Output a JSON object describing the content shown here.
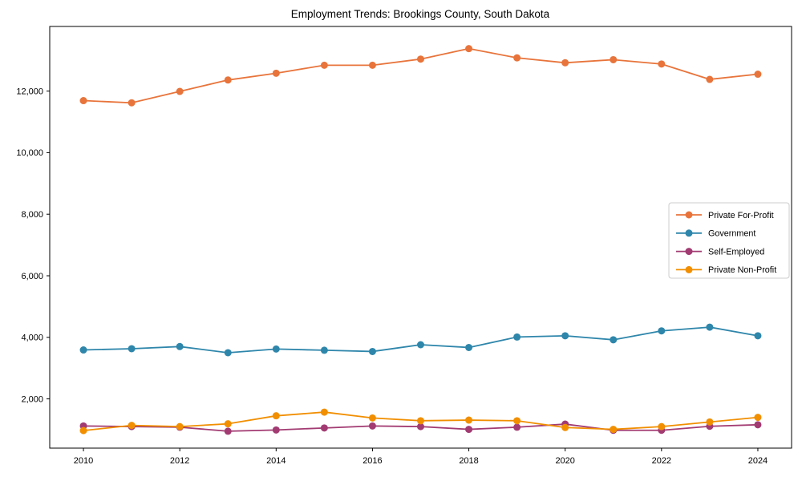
{
  "title": "Employment Trends: Brookings County, South Dakota",
  "colors": {
    "private_for_profit": "#E8743B",
    "government": "#2E86AB",
    "self_employed": "#A23B72",
    "private_non_profit": "#F18F01",
    "spine": "#000000",
    "legend_border": "#cccccc",
    "background": "#ffffff"
  },
  "chart_data": {
    "type": "line",
    "title": "Employment Trends: Brookings County, South Dakota",
    "xlabel": "",
    "ylabel": "",
    "x": [
      2010,
      2011,
      2012,
      2013,
      2014,
      2015,
      2016,
      2017,
      2018,
      2019,
      2020,
      2021,
      2022,
      2023,
      2024
    ],
    "series": [
      {
        "name": "Private For-Profit",
        "color": "#E8743B",
        "values": [
          11690,
          11620,
          11990,
          12360,
          12580,
          12840,
          12840,
          13040,
          13380,
          13080,
          12920,
          13020,
          12880,
          12380,
          12550
        ]
      },
      {
        "name": "Government",
        "color": "#2E86AB",
        "values": [
          3590,
          3630,
          3700,
          3500,
          3620,
          3580,
          3540,
          3760,
          3670,
          4010,
          4050,
          3920,
          4210,
          4330,
          4050
        ]
      },
      {
        "name": "Self-Employed",
        "color": "#A23B72",
        "values": [
          1120,
          1100,
          1080,
          950,
          990,
          1055,
          1120,
          1100,
          1010,
          1080,
          1180,
          980,
          980,
          1110,
          1160
        ]
      },
      {
        "name": "Private Non-Profit",
        "color": "#F18F01",
        "values": [
          970,
          1140,
          1100,
          1190,
          1450,
          1570,
          1380,
          1290,
          1310,
          1290,
          1070,
          1010,
          1100,
          1250,
          1400
        ]
      }
    ],
    "xticks": [
      2010,
      2012,
      2014,
      2016,
      2018,
      2020,
      2022,
      2024
    ],
    "yticks": [
      2000,
      4000,
      6000,
      8000,
      10000,
      12000
    ],
    "ytick_labels": [
      "2,000",
      "4,000",
      "6,000",
      "8,000",
      "10,000",
      "12,000"
    ],
    "xlim": [
      2009.3,
      2024.7
    ],
    "ylim": [
      400,
      14100
    ],
    "grid": false,
    "legend_position": "center right",
    "marker": "circle",
    "line_width": 1.8,
    "marker_radius": 4.5
  }
}
